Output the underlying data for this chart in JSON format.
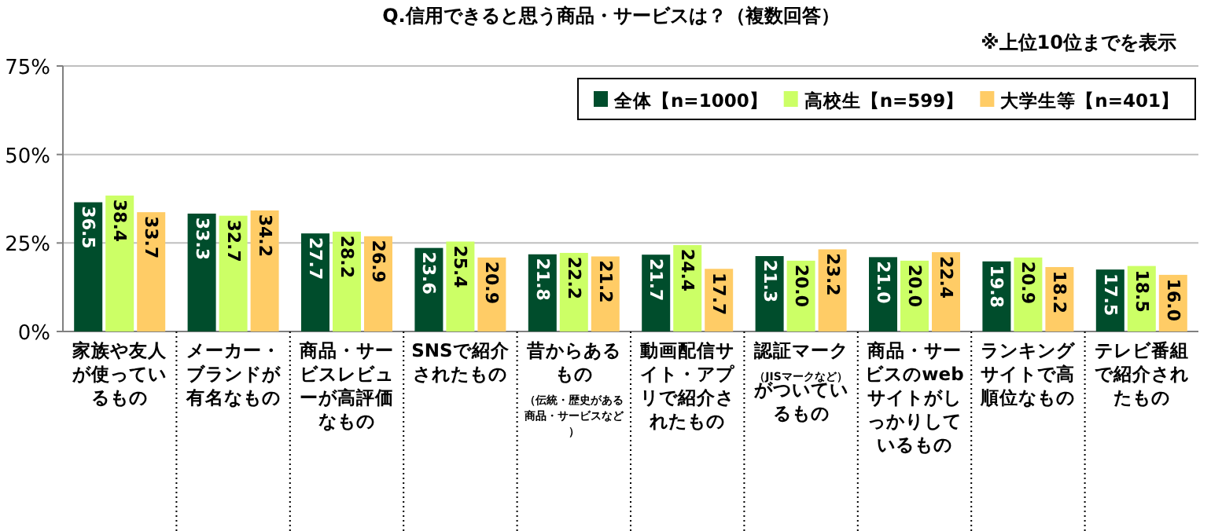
{
  "chart_data": {
    "type": "bar",
    "title": "Q.信用できると思う商品・サービスは？（複数回答）",
    "annotations": [
      "※上位10位までを表示"
    ],
    "categories": [
      "家族や友人が使っているもの",
      "メーカー・ブランドが有名なもの",
      "商品・サービスレビューが高評価なもの",
      "SNSで紹介されたもの",
      "昔からあるもの（伝統・歴史がある商品・サービスなど）",
      "動画配信サイト・アプリで紹介されたもの",
      "認証マーク（JISマークなど）がついているもの",
      "商品・サービスのwebサイトがしっかりしているもの",
      "ランキングサイトで高順位なもの",
      "テレビ番組で紹介されたもの"
    ],
    "series": [
      {
        "name": "全体【n=1000】",
        "color": "#004d2c",
        "values": [
          36.5,
          33.3,
          27.7,
          23.6,
          21.8,
          21.7,
          21.3,
          21.0,
          19.8,
          17.5
        ],
        "value_labels": [
          "36.5",
          "33.3",
          "27.7",
          "23.6",
          "21.8",
          "21.7",
          "21.3",
          "21.0",
          "19.8",
          "17.5"
        ]
      },
      {
        "name": "高校生【n=599】",
        "color": "#ccff66",
        "values": [
          38.4,
          32.7,
          28.2,
          25.4,
          22.2,
          24.4,
          20.0,
          20.0,
          20.9,
          18.5
        ],
        "value_labels": [
          "38.4",
          "32.7",
          "28.2",
          "25.4",
          "22.2",
          "24.4",
          "20.0",
          "20.0",
          "20.9",
          "18.5"
        ]
      },
      {
        "name": "大学生等【n=401】",
        "color": "#ffcc66",
        "values": [
          33.7,
          34.2,
          26.9,
          20.9,
          21.2,
          17.7,
          23.2,
          22.4,
          18.2,
          16.0
        ],
        "value_labels": [
          "33.7",
          "34.2",
          "26.9",
          "20.9",
          "21.2",
          "17.7",
          "23.2",
          "22.4",
          "18.2",
          "16.0"
        ]
      }
    ],
    "ylim": [
      0,
      75
    ],
    "yticks": [
      {
        "value": 0,
        "label": "0%"
      },
      {
        "value": 25,
        "label": "25%"
      },
      {
        "value": 50,
        "label": "50%"
      },
      {
        "value": 75,
        "label": "75%"
      }
    ],
    "grid": "y",
    "legend": "top right"
  }
}
